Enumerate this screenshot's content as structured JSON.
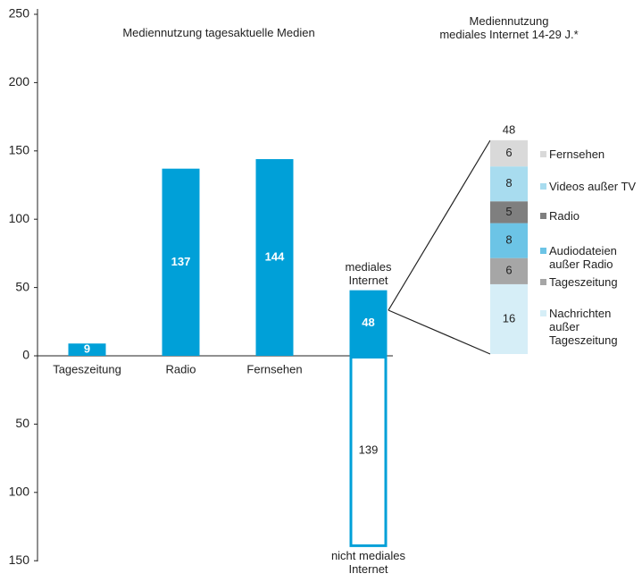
{
  "chart_data": [
    {
      "type": "bar",
      "title": "Mediennutzung tagesaktuelle Medien",
      "categories": [
        "Tageszeitung",
        "Radio",
        "Fernsehen",
        null
      ],
      "series": [
        {
          "color": "#00a0d8",
          "values": [
            9,
            137,
            144,
            48
          ]
        },
        {
          "color": "#00a0d8",
          "outline": true,
          "values": [
            null,
            null,
            null,
            -139
          ],
          "value_labels": [
            null,
            null,
            null,
            "139"
          ]
        }
      ],
      "annotations": [
        "mediales Internet",
        "nicht mediales Internet"
      ],
      "ylim": [
        -150,
        250
      ],
      "yticks": [
        {
          "value": -150,
          "label": "150"
        },
        {
          "value": -100,
          "label": "100"
        },
        {
          "value": -50,
          "label": "50"
        },
        0,
        50,
        100,
        150,
        200,
        250
      ]
    },
    {
      "type": "stacked-bar",
      "title": "Mediennutzung\nmediales Internet 14-29 J.*",
      "total": 48,
      "series": [
        {
          "name": "Nachrichten außer Tageszeitung",
          "color": "#d6eef7",
          "values": [
            16
          ]
        },
        {
          "name": "Tageszeitung",
          "color": "#a6a6a6",
          "values": [
            6
          ]
        },
        {
          "name": "Audiodateien außer Radio",
          "color": "#6cc4e6",
          "values": [
            8
          ]
        },
        {
          "name": "Radio",
          "color": "#7f7f7f",
          "values": [
            5
          ]
        },
        {
          "name": "Videos außer TV",
          "color": "#a8dcef",
          "values": [
            8
          ]
        },
        {
          "name": "Fernsehen",
          "color": "#d9d9d9",
          "values": [
            6
          ]
        }
      ]
    }
  ]
}
